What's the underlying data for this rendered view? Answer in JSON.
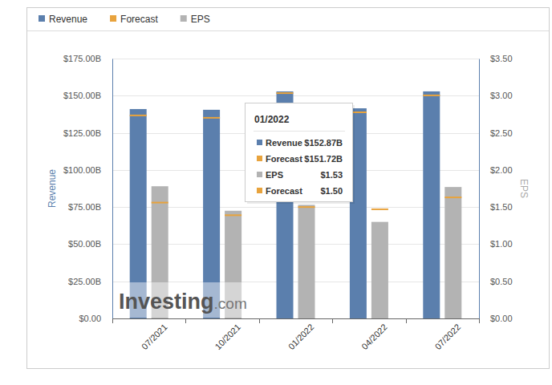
{
  "chart_data": {
    "type": "bar",
    "categories": [
      "07/2021",
      "10/2021",
      "01/2022",
      "04/2022",
      "07/2022"
    ],
    "series": [
      {
        "name": "Revenue",
        "type": "bar",
        "color": "#5b7fad",
        "values": [
          141.0,
          140.5,
          152.87,
          141.5,
          152.9
        ]
      },
      {
        "name": "Forecast",
        "type": "scatter",
        "marker": "dash",
        "color": "#e8a33d",
        "values": [
          136.7,
          135.1,
          151.72,
          138.8,
          150.2
        ]
      },
      {
        "name": "EPS",
        "type": "bar",
        "color": "#b3b3b3",
        "axis": "y2",
        "values": [
          1.78,
          1.45,
          1.53,
          1.3,
          1.77
        ]
      },
      {
        "name": "Forecast",
        "type": "scatter",
        "marker": "dash",
        "color": "#e8a33d",
        "axis": "y2",
        "values": [
          1.56,
          1.39,
          1.5,
          1.47,
          1.63
        ]
      }
    ],
    "y_label": "Revenue",
    "y2_label": "EPS",
    "ylim": [
      0,
      175
    ],
    "yticks": [
      {
        "value": 0,
        "label": "$0.00"
      },
      {
        "value": 25,
        "label": "$25.00B"
      },
      {
        "value": 50,
        "label": "$50.00B"
      },
      {
        "value": 75,
        "label": "$75.00B"
      },
      {
        "value": 100,
        "label": "$100.00B"
      },
      {
        "value": 125,
        "label": "$125.00B"
      },
      {
        "value": 150,
        "label": "$150.00B"
      },
      {
        "value": 175,
        "label": "$175.00B"
      }
    ],
    "y2lim": [
      0,
      3.5
    ],
    "y2ticks": [
      {
        "value": 0,
        "label": "$0.00"
      },
      {
        "value": 0.5,
        "label": "$0.50"
      },
      {
        "value": 1,
        "label": "$1.00"
      },
      {
        "value": 1.5,
        "label": "$1.50"
      },
      {
        "value": 2,
        "label": "$2.00"
      },
      {
        "value": 2.5,
        "label": "$2.50"
      },
      {
        "value": 3,
        "label": "$3.00"
      },
      {
        "value": 3.5,
        "label": "$3.50"
      }
    ],
    "grid": true,
    "legend": "top-left",
    "tooltip": {
      "title": "01/2022",
      "rows": [
        {
          "label": "Revenue",
          "value": "$152.87B"
        },
        {
          "label": "Forecast",
          "value": "$151.72B"
        },
        {
          "label": "EPS",
          "value": "$1.53"
        },
        {
          "label": "Forecast",
          "value": "$1.50"
        }
      ]
    },
    "watermark": [
      "Investing",
      ".com"
    ]
  }
}
